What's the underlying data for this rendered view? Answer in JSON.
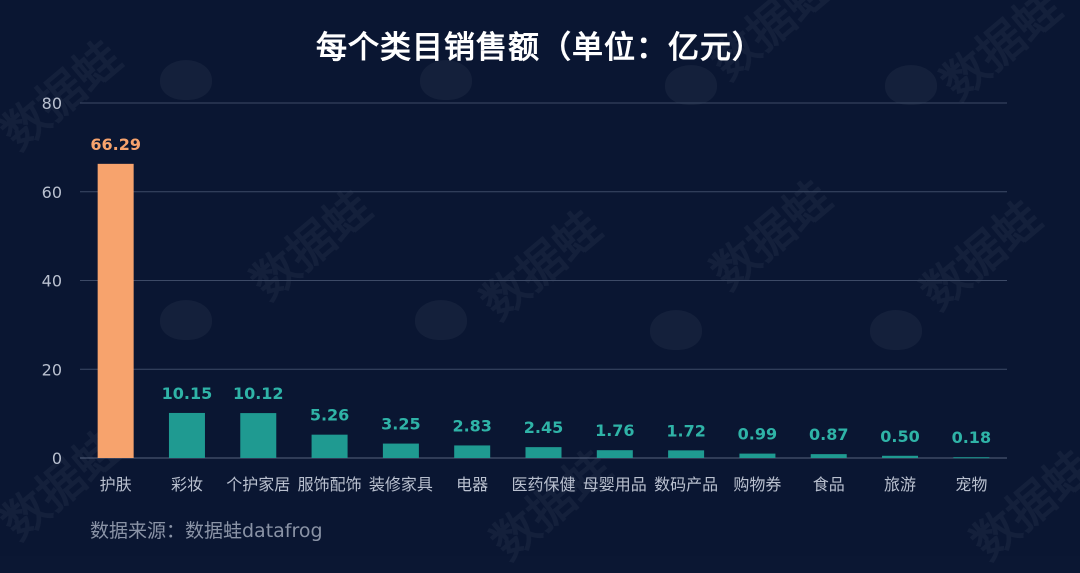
{
  "title": "每个类目销售额（单位：亿元）",
  "source": "数据来源：数据蛙datafrog",
  "watermark": "数据蛙",
  "colors": {
    "background": "#0a1632",
    "highlight_bar": "#f7a36d",
    "bar": "#1f9a91",
    "highlight_label": "#f7a36d",
    "label": "#2fb3a7",
    "grid": "#3d4a66",
    "axis_text": "#b9c0cf"
  },
  "chart_data": {
    "type": "bar",
    "title": "每个类目销售额（单位：亿元）",
    "xlabel": "",
    "ylabel": "",
    "categories": [
      "护肤",
      "彩妆",
      "个护家居",
      "服饰配饰",
      "装修家具",
      "电器",
      "医药保健",
      "母婴用品",
      "数码产品",
      "购物券",
      "食品",
      "旅游",
      "宠物"
    ],
    "values": [
      66.29,
      10.15,
      10.12,
      5.26,
      3.25,
      2.83,
      2.45,
      1.76,
      1.72,
      0.99,
      0.87,
      0.5,
      0.18
    ],
    "value_labels": [
      "66.29",
      "10.15",
      "10.12",
      "5.26",
      "3.25",
      "2.83",
      "2.45",
      "1.76",
      "1.72",
      "0.99",
      "0.87",
      "0.50",
      "0.18"
    ],
    "ylim": [
      0,
      80
    ],
    "yticks": [
      "0",
      "20",
      "40",
      "60",
      "80"
    ],
    "grid": true,
    "legend": "none",
    "highlight_index": 0
  }
}
